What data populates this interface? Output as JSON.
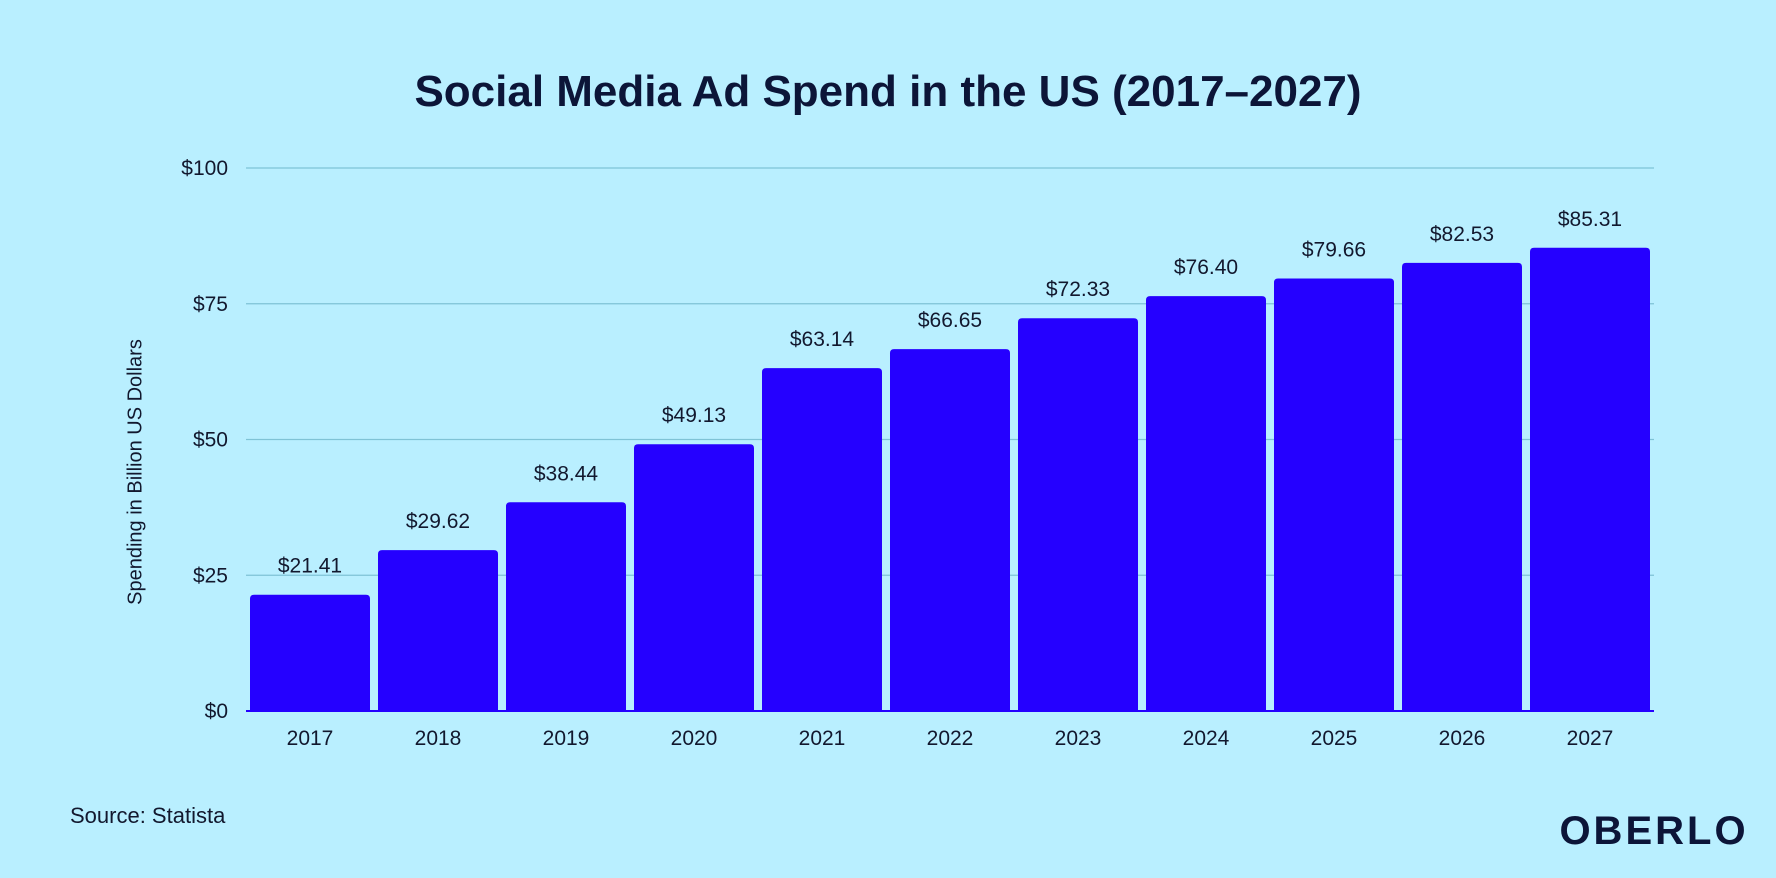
{
  "chart_data": {
    "type": "bar",
    "title": "Social Media Ad Spend in the US (2017–2027)",
    "xlabel": "",
    "ylabel": "Spending in Billion US Dollars",
    "categories": [
      "2017",
      "2018",
      "2019",
      "2020",
      "2021",
      "2022",
      "2023",
      "2024",
      "2025",
      "2026",
      "2027"
    ],
    "values": [
      21.41,
      29.62,
      38.44,
      49.13,
      63.14,
      66.65,
      72.33,
      76.4,
      79.66,
      82.53,
      85.31
    ],
    "data_labels": [
      "$21.41",
      "$29.62",
      "$38.44",
      "$49.13",
      "$63.14",
      "$66.65",
      "$72.33",
      "$76.40",
      "$79.66",
      "$82.53",
      "$85.31"
    ],
    "ylim": [
      0,
      100
    ],
    "yticks": [
      0,
      25,
      50,
      75,
      100
    ],
    "ytick_labels": [
      "$0",
      "$25",
      "$50",
      "$75",
      "$100"
    ],
    "grid": true,
    "legend": "none",
    "bar_color": "#2500ff",
    "grid_color": "#7fc3d6",
    "background_color": "#b9efff"
  },
  "footer": {
    "source": "Source: Statista",
    "brand": "OBERLO"
  }
}
